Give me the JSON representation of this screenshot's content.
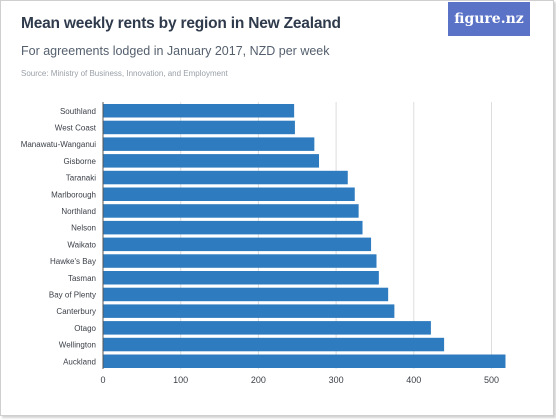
{
  "header": {
    "title": "Mean weekly rents by region in New Zealand",
    "subtitle": "For agreements lodged in January 2017, NZD per week",
    "source": "Source: Ministry of Business, Innovation, and Employment",
    "logo": "figure.nz"
  },
  "colors": {
    "bar": "#2e7bbf",
    "grid": "#dddddd",
    "text": "#3a3f47",
    "logo_bg": "#5b73c7"
  },
  "chart_data": {
    "type": "bar",
    "orientation": "horizontal",
    "title": "Mean weekly rents by region in New Zealand",
    "subtitle": "For agreements lodged in January 2017, NZD per week",
    "xlabel": "",
    "ylabel": "",
    "xlim": [
      0,
      520
    ],
    "ticks": [
      0,
      100,
      200,
      300,
      400,
      500
    ],
    "grid": true,
    "categories": [
      "Southland",
      "West Coast",
      "Manawatu-Wanganui",
      "Gisborne",
      "Taranaki",
      "Marlborough",
      "Northland",
      "Nelson",
      "Waikato",
      "Hawke's Bay",
      "Tasman",
      "Bay of Plenty",
      "Canterbury",
      "Otago",
      "Wellington",
      "Auckland"
    ],
    "values": [
      246,
      247,
      272,
      278,
      315,
      324,
      329,
      334,
      345,
      352,
      355,
      367,
      375,
      422,
      439,
      518
    ]
  }
}
